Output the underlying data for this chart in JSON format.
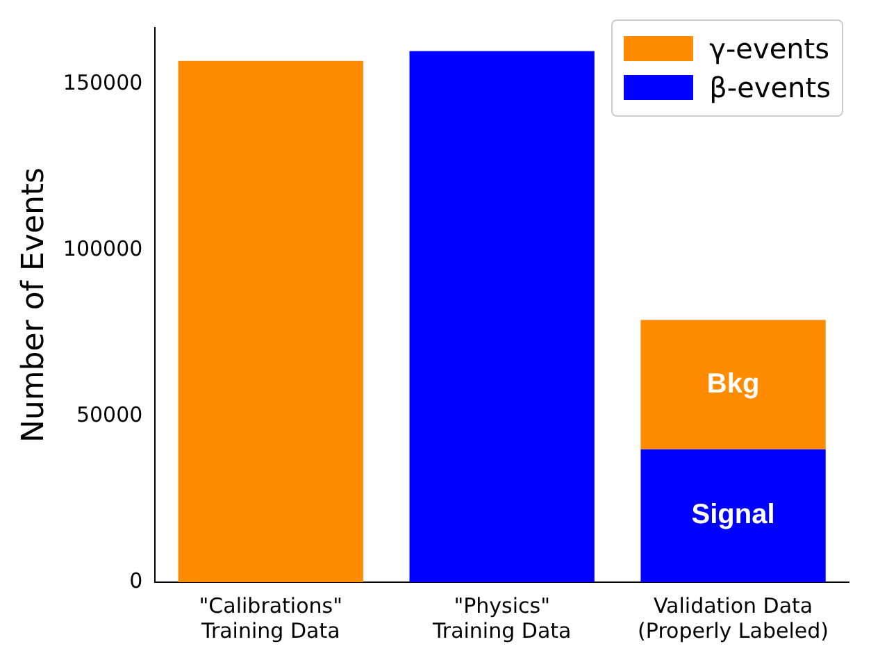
{
  "chart_data": {
    "type": "bar",
    "stacked": true,
    "ylabel": "Number of Events",
    "categories": [
      "\"Calibrations\"\nTraining Data",
      "\"Physics\"\nTraining Data",
      "Validation Data\n(Properly Labeled)"
    ],
    "series": [
      {
        "name": "β-events",
        "color": "#0000ff",
        "values": [
          null,
          160000,
          40000
        ]
      },
      {
        "name": "γ-events",
        "color": "#ff8c00",
        "values": [
          157000,
          null,
          39000
        ]
      }
    ],
    "ylim": [
      0,
      167000
    ],
    "yticks": [
      0,
      50000,
      100000,
      150000
    ],
    "grid": false,
    "legend": "top right",
    "annotations": [
      "Bkg",
      "Signal"
    ]
  }
}
